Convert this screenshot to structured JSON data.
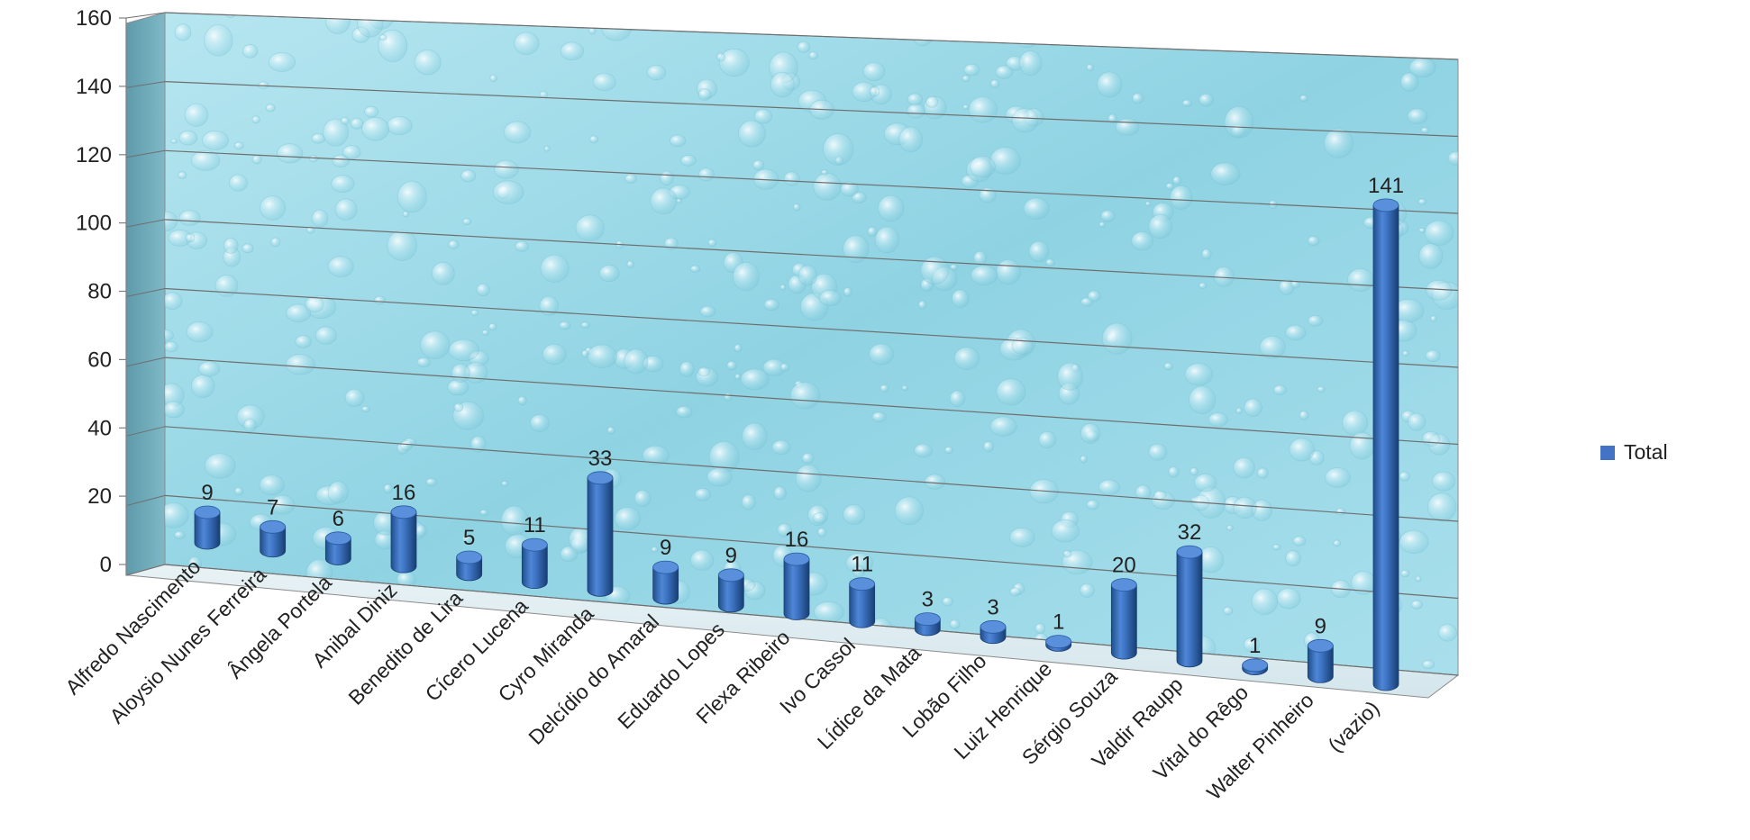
{
  "chart_data": {
    "type": "bar",
    "categories": [
      "Alfredo Nascimento",
      "Aloysio Nunes Ferreira",
      "Ângela Portela",
      "Anibal Diniz",
      "Benedito de Lira",
      "Cícero Lucena",
      "Cyro Miranda",
      "Delcídio do Amaral",
      "Eduardo Lopes",
      "Flexa Ribeiro",
      "Ivo Cassol",
      "Lídice da Mata",
      "Lobão Filho",
      "Luiz Henrique",
      "Sérgio Souza",
      "Valdir Raupp",
      "Vital do Rêgo",
      "Walter Pinheiro",
      "(vazio)"
    ],
    "series": [
      {
        "name": "Total",
        "values": [
          9,
          7,
          6,
          16,
          5,
          11,
          33,
          9,
          9,
          16,
          11,
          3,
          3,
          1,
          20,
          32,
          1,
          9,
          141
        ],
        "color": "#4472C4"
      }
    ],
    "yticks": [
      "0",
      "20",
      "40",
      "60",
      "80",
      "100",
      "120",
      "140",
      "160"
    ],
    "ylim": [
      0,
      160
    ],
    "grid": true,
    "three_d": true,
    "bar_shape": "cylinder",
    "background": "water-drops",
    "legend_position": "right"
  }
}
